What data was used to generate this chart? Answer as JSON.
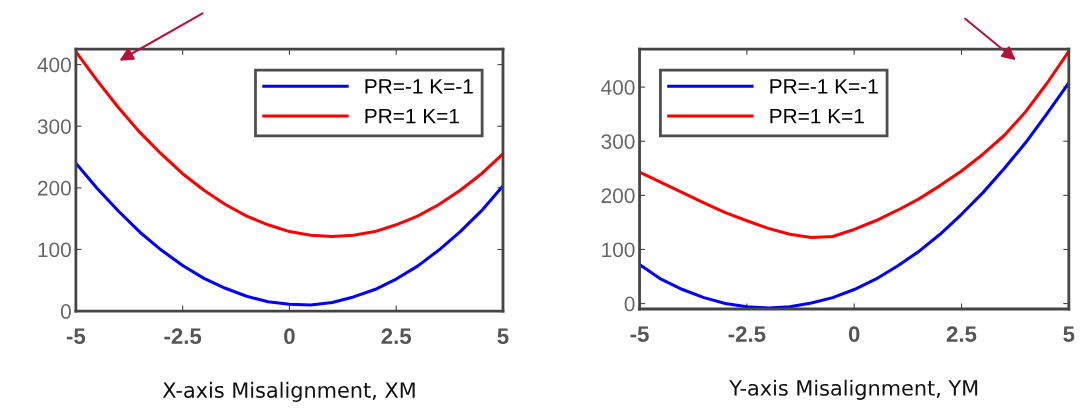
{
  "chart_data": [
    {
      "type": "line",
      "xlabel": "X-axis Misalignment, XM",
      "x": [
        -5,
        -4.5,
        -4,
        -3.5,
        -3,
        -2.5,
        -2,
        -1.5,
        -1,
        -0.5,
        0,
        0.5,
        1,
        1.5,
        2,
        2.5,
        3,
        3.5,
        4,
        4.5,
        5
      ],
      "series": [
        {
          "name": "PR=-1 K=-1",
          "color": "#0000ff",
          "values": [
            240,
            199,
            162,
            128,
            99,
            74,
            53,
            37,
            24,
            15,
            11,
            10,
            14,
            23,
            35,
            52,
            73,
            99,
            129,
            163,
            203
          ]
        },
        {
          "name": "PR=1 K=1",
          "color": "#ff0000",
          "values": [
            421,
            374,
            330,
            290,
            255,
            223,
            196,
            173,
            154,
            140,
            129,
            123,
            121,
            123,
            129,
            140,
            154,
            173,
            196,
            223,
            255
          ]
        }
      ],
      "xlim": [
        -5,
        5
      ],
      "xticks": [
        -5,
        -2.5,
        0,
        2.5,
        5
      ],
      "ylim": [
        0,
        425
      ],
      "yticks": [
        0,
        100,
        200,
        300,
        400
      ],
      "grid": false,
      "legend": "top right",
      "marker": "none",
      "line_style": "solid"
    },
    {
      "type": "line",
      "xlabel": "Y-axis Misalignment, YM",
      "x": [
        -5,
        -4.5,
        -4,
        -3.5,
        -3,
        -2.5,
        -2,
        -1.5,
        -1,
        -0.5,
        0,
        0.5,
        1,
        1.5,
        2,
        2.5,
        3,
        3.5,
        4,
        4.5,
        5
      ],
      "series": [
        {
          "name": "PR=-1 K=-1",
          "color": "#0000ff",
          "values": [
            72,
            45,
            26,
            11,
            0,
            -6,
            -8,
            -6,
            1,
            11,
            26,
            45,
            69,
            96,
            128,
            165,
            205,
            250,
            298,
            352,
            408
          ]
        },
        {
          "name": "PR=1 K=1",
          "color": "#ff0000",
          "values": [
            243,
            224,
            205,
            186,
            168,
            153,
            139,
            128,
            122,
            124,
            137,
            153,
            172,
            193,
            218,
            245,
            276,
            311,
            355,
            408,
            466
          ]
        }
      ],
      "xlim": [
        -5,
        5
      ],
      "xticks": [
        -5,
        -2.5,
        0,
        2.5,
        5
      ],
      "ylim": [
        -10,
        470
      ],
      "yticks": [
        0,
        100,
        200,
        300,
        400
      ],
      "grid": false,
      "legend": "top left",
      "marker": "none",
      "line_style": "solid"
    }
  ]
}
